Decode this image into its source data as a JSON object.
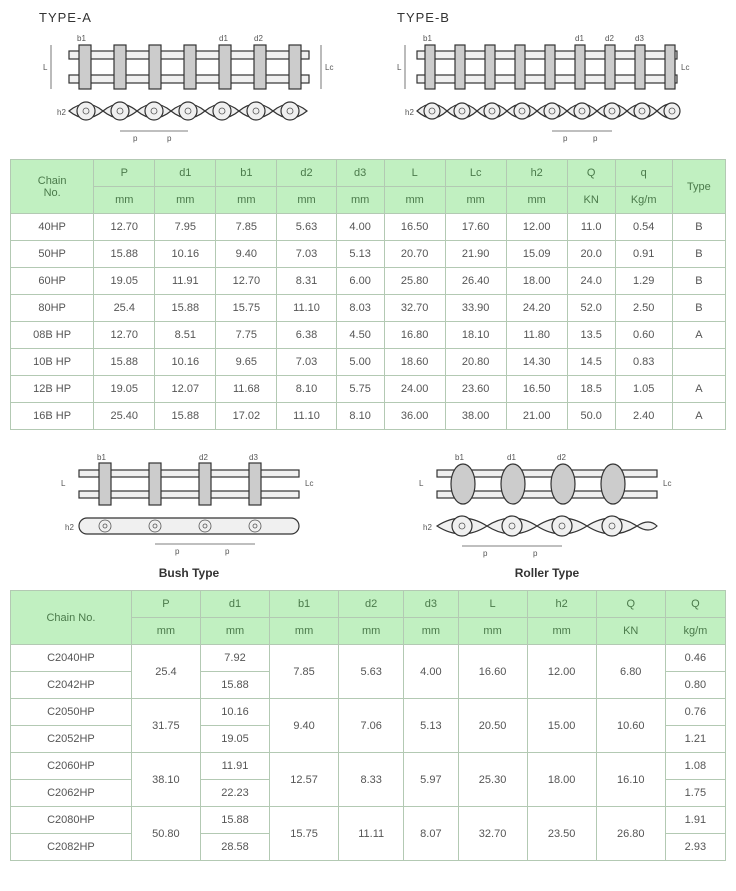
{
  "diagrams": {
    "top": [
      {
        "title": "TYPE-A",
        "dims": [
          "d1",
          "d2",
          "b1",
          "L",
          "Lc",
          "h2",
          "p",
          "p"
        ]
      },
      {
        "title": "TYPE-B",
        "dims": [
          "d1",
          "d2",
          "d3",
          "b1",
          "L",
          "Lc",
          "h2",
          "p",
          "p"
        ]
      }
    ],
    "mid": [
      {
        "sub": "Bush Type",
        "dims": [
          "d1",
          "d2",
          "d3",
          "b1",
          "L",
          "Lc",
          "h2",
          "p",
          "p"
        ]
      },
      {
        "sub": "Roller Type",
        "dims": [
          "d1",
          "d2",
          "d3",
          "b1",
          "L",
          "Lc",
          "h2",
          "p",
          "p"
        ]
      }
    ]
  },
  "table1": {
    "header_groups": [
      {
        "key": "chain",
        "label": "Chain\nNo.",
        "unit": "",
        "rowspan": 2
      },
      {
        "key": "P",
        "label": "P",
        "unit": "mm"
      },
      {
        "key": "d1",
        "label": "d1",
        "unit": "mm"
      },
      {
        "key": "b1",
        "label": "b1",
        "unit": "mm"
      },
      {
        "key": "d2",
        "label": "d2",
        "unit": "mm"
      },
      {
        "key": "d3",
        "label": "d3",
        "unit": "mm"
      },
      {
        "key": "L",
        "label": "L",
        "unit": "mm"
      },
      {
        "key": "Lc",
        "label": "Lc",
        "unit": "mm"
      },
      {
        "key": "h2",
        "label": "h2",
        "unit": "mm"
      },
      {
        "key": "Q",
        "label": "Q",
        "unit": "KN"
      },
      {
        "key": "q",
        "label": "q",
        "unit": "Kg/m"
      },
      {
        "key": "type",
        "label": "Type",
        "unit": "",
        "rowspan": 2
      }
    ],
    "rows": [
      [
        "40HP",
        "12.70",
        "7.95",
        "7.85",
        "5.63",
        "4.00",
        "16.50",
        "17.60",
        "12.00",
        "11.0",
        "0.54",
        "B"
      ],
      [
        "50HP",
        "15.88",
        "10.16",
        "9.40",
        "7.03",
        "5.13",
        "20.70",
        "21.90",
        "15.09",
        "20.0",
        "0.91",
        "B"
      ],
      [
        "60HP",
        "19.05",
        "11.91",
        "12.70",
        "8.31",
        "6.00",
        "25.80",
        "26.40",
        "18.00",
        "24.0",
        "1.29",
        "B"
      ],
      [
        "80HP",
        "25.4",
        "15.88",
        "15.75",
        "11.10",
        "8.03",
        "32.70",
        "33.90",
        "24.20",
        "52.0",
        "2.50",
        "B"
      ],
      [
        "08B HP",
        "12.70",
        "8.51",
        "7.75",
        "6.38",
        "4.50",
        "16.80",
        "18.10",
        "11.80",
        "13.5",
        "0.60",
        "A"
      ],
      [
        "10B HP",
        "15.88",
        "10.16",
        "9.65",
        "7.03",
        "5.00",
        "18.60",
        "20.80",
        "14.30",
        "14.5",
        "0.83",
        ""
      ],
      [
        "12B HP",
        "19.05",
        "12.07",
        "11.68",
        "8.10",
        "5.75",
        "24.00",
        "23.60",
        "16.50",
        "18.5",
        "1.05",
        "A"
      ],
      [
        "16B HP",
        "25.40",
        "15.88",
        "17.02",
        "11.10",
        "8.10",
        "36.00",
        "38.00",
        "21.00",
        "50.0",
        "2.40",
        "A"
      ]
    ]
  },
  "table2": {
    "header_groups": [
      {
        "key": "chain",
        "label": "Chain No.",
        "unit": "",
        "rowspan": 2
      },
      {
        "key": "P",
        "label": "P",
        "unit": "mm"
      },
      {
        "key": "d1",
        "label": "d1",
        "unit": "mm"
      },
      {
        "key": "b1",
        "label": "b1",
        "unit": "mm"
      },
      {
        "key": "d2",
        "label": "d2",
        "unit": "mm"
      },
      {
        "key": "d3",
        "label": "d3",
        "unit": "mm"
      },
      {
        "key": "L",
        "label": "L",
        "unit": "mm"
      },
      {
        "key": "h2",
        "label": "h2",
        "unit": "mm"
      },
      {
        "key": "Q",
        "label": "Q",
        "unit": "KN"
      },
      {
        "key": "q2",
        "label": "Q",
        "unit": "kg/m"
      }
    ],
    "rows": [
      {
        "chain": "C2040HP",
        "P": "25.4",
        "d1": "7.92",
        "b1": "7.85",
        "d2": "5.63",
        "d3": "4.00",
        "L": "16.60",
        "h2": "12.00",
        "Q": "6.80",
        "q2": "0.46",
        "mergeP": true,
        "mergeRest": true
      },
      {
        "chain": "C2042HP",
        "d1": "15.88",
        "q2": "0.80"
      },
      {
        "chain": "C2050HP",
        "P": "31.75",
        "d1": "10.16",
        "b1": "9.40",
        "d2": "7.06",
        "d3": "5.13",
        "L": "20.50",
        "h2": "15.00",
        "Q": "10.60",
        "q2": "0.76",
        "mergeP": true,
        "mergeRest": true
      },
      {
        "chain": "C2052HP",
        "d1": "19.05",
        "q2": "1.21"
      },
      {
        "chain": "C2060HP",
        "P": "38.10",
        "d1": "11.91",
        "b1": "12.57",
        "d2": "8.33",
        "d3": "5.97",
        "L": "25.30",
        "h2": "18.00",
        "Q": "16.10",
        "q2": "1.08",
        "mergeP": true,
        "mergeRest": true
      },
      {
        "chain": "C2062HP",
        "d1": "22.23",
        "q2": "1.75"
      },
      {
        "chain": "C2080HP",
        "P": "50.80",
        "d1": "15.88",
        "b1": "15.75",
        "d2": "11.11",
        "d3": "8.07",
        "L": "32.70",
        "h2": "23.50",
        "Q": "26.80",
        "q2": "1.91",
        "mergeP": true,
        "mergeRest": true
      },
      {
        "chain": "C2082HP",
        "d1": "28.58",
        "q2": "2.93"
      }
    ]
  },
  "style": {
    "header_bg": "#c1f0c1",
    "header_fg": "#4b7a4b",
    "border_color": "#b3c9b3",
    "cell_fg": "#555555",
    "font_size": 11
  }
}
